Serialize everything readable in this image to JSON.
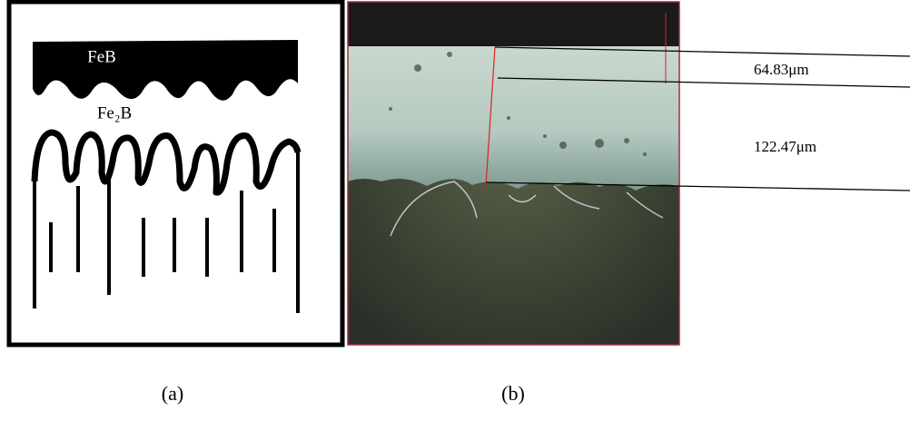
{
  "figure": {
    "panel_a": {
      "labels": [
        "FeB",
        "Fe₂B"
      ],
      "caption": "(a)"
    },
    "panel_b": {
      "measurements": [
        "64.83μm",
        "122.47μm"
      ],
      "caption": "(b)"
    }
  }
}
